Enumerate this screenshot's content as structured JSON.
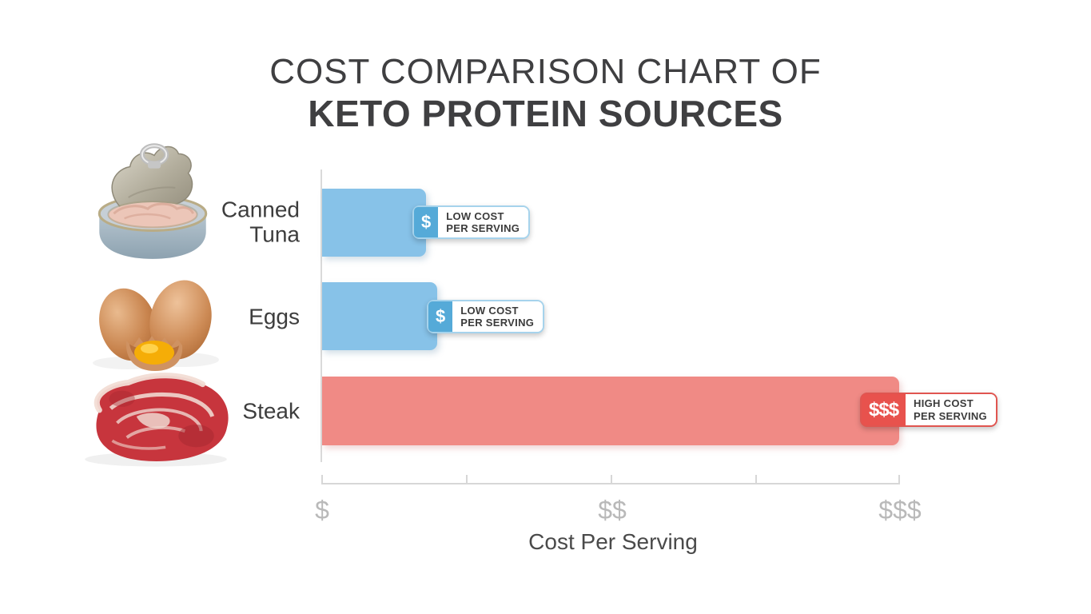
{
  "title": {
    "line1": "COST COMPARISON CHART OF",
    "line2": "KETO PROTEIN SOURCES"
  },
  "rows": [
    {
      "label": "Canned\nTuna",
      "image": "canned-tuna-photo",
      "cost_level": "low",
      "badge": {
        "symbol": "$",
        "line1": "LOW COST",
        "line2": "PER SERVING"
      }
    },
    {
      "label": "Eggs",
      "image": "eggs-photo",
      "cost_level": "low",
      "badge": {
        "symbol": "$",
        "line1": "LOW COST",
        "line2": "PER SERVING"
      }
    },
    {
      "label": "Steak",
      "image": "steak-photo",
      "cost_level": "high",
      "badge": {
        "symbol": "$$$",
        "line1": "HIGH COST",
        "line2": "PER SERVING"
      }
    }
  ],
  "axis": {
    "xlabel": "Cost Per Serving",
    "tick_labels": [
      "$",
      "$$",
      "$$$"
    ]
  },
  "chart_data": {
    "type": "bar",
    "orientation": "horizontal",
    "title": "Cost Comparison Chart of Keto Protein Sources",
    "categories": [
      "Canned Tuna",
      "Eggs",
      "Steak"
    ],
    "values": [
      0.18,
      0.2,
      1.0
    ],
    "value_note": "bar length as fraction of axis from $ to $$$",
    "cost_levels": [
      "$",
      "$",
      "$$$"
    ],
    "annotations": [
      "$ LOW COST PER SERVING",
      "$ LOW COST PER SERVING",
      "$$$ HIGH COST PER SERVING"
    ],
    "xlabel": "Cost Per Serving",
    "x_ticks": [
      "$",
      "$$",
      "$$$"
    ],
    "grid": false,
    "legend": false,
    "colors": {
      "low_bar": "#87c2e8",
      "high_bar": "#f08a85",
      "low_badge_accent": "#55aad8",
      "high_badge_accent": "#e8524d",
      "axis_line": "#d7d7d7",
      "tick_label": "#b9b9b9",
      "text_dark": "#3d3d3d"
    }
  }
}
